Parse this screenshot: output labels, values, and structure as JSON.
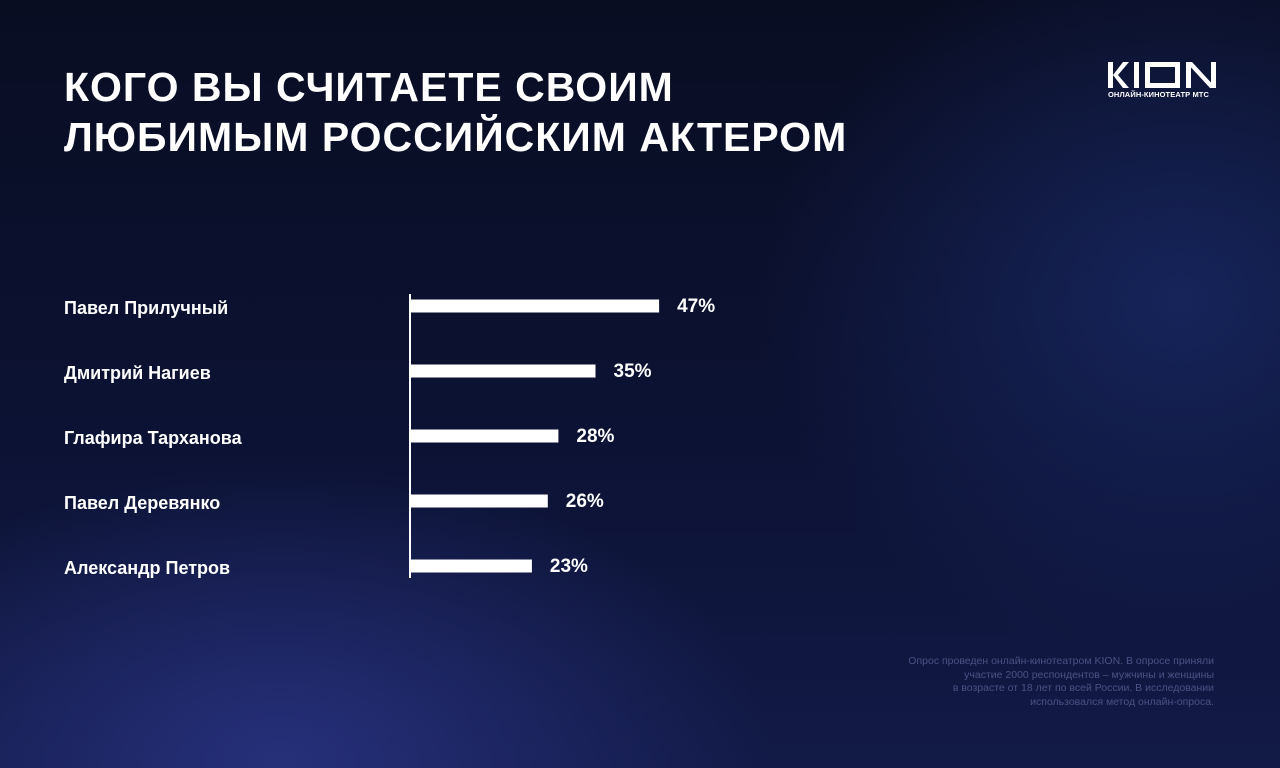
{
  "title": {
    "line1": "Кого вы считаете своим",
    "line2": "любимым российским актером"
  },
  "logo": {
    "mark": "KION",
    "subtitle": "ОНЛАЙН-КИНОТЕАТР МТС"
  },
  "footnote": {
    "lines": [
      "Опрос проведен онлайн-кинотеатром KION. В опросе приняли",
      "участие 2000 респондентов – мужчины и женщины",
      "в возрасте от 18 лет по всей России. В исследовании",
      "использовался метод онлайн-опроса."
    ]
  },
  "colors": {
    "bar": "#ffffff",
    "axis": "#ffffff",
    "footnote": "#4a5284"
  },
  "chart_data": {
    "type": "bar",
    "orientation": "horizontal",
    "categories": [
      "Павел Прилучный",
      "Дмитрий Нагиев",
      "Глафира Тарханова",
      "Павел Деревянко",
      "Александр Петров"
    ],
    "values": [
      47,
      35,
      28,
      26,
      23
    ],
    "value_labels": [
      "47%",
      "35%",
      "28%",
      "26%",
      "23%"
    ],
    "unit": "%",
    "xlim": [
      0,
      100
    ],
    "grid": false,
    "legend": "none"
  }
}
